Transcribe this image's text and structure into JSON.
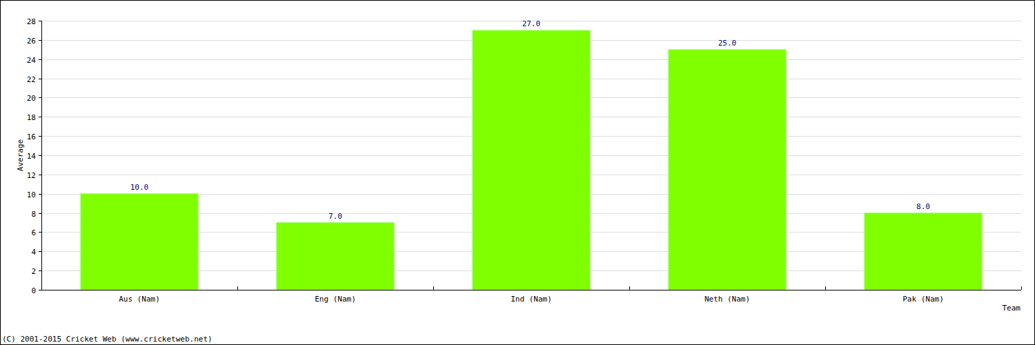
{
  "chart_data": {
    "type": "bar",
    "x_label": "Team",
    "y_label": "Average",
    "categories": [
      "Aus (Nam)",
      "Eng (Nam)",
      "Ind (Nam)",
      "Neth (Nam)",
      "Pak (Nam)"
    ],
    "values": [
      10,
      7,
      27,
      25,
      8
    ],
    "value_labels": [
      "10.0",
      "7.0",
      "27.0",
      "25.0",
      "8.0"
    ],
    "data_labels": true,
    "color": "#80ff00",
    "ylim": [
      0,
      28
    ],
    "yticks": [
      0,
      2,
      4,
      6,
      8,
      10,
      12,
      14,
      16,
      18,
      20,
      22,
      24,
      26,
      28
    ],
    "grid": true,
    "annotations": [
      "(C) 2001-2015 Cricket Web (www.cricketweb.net)"
    ]
  }
}
